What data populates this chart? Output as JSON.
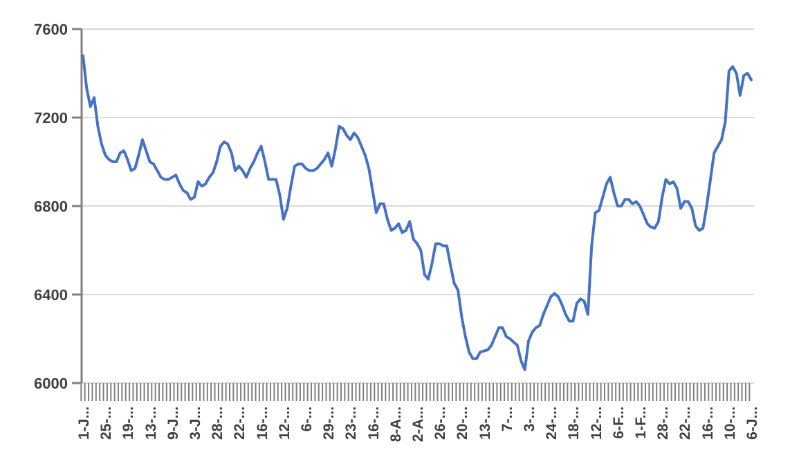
{
  "chart_data": {
    "type": "line",
    "categories": [
      "1-J...",
      null,
      null,
      null,
      null,
      null,
      "25-...",
      null,
      null,
      null,
      null,
      null,
      "19-...",
      null,
      null,
      null,
      null,
      null,
      "13-...",
      null,
      null,
      null,
      null,
      null,
      "9-J...",
      null,
      null,
      null,
      null,
      null,
      "3-J...",
      null,
      null,
      null,
      null,
      null,
      "28-...",
      null,
      null,
      null,
      null,
      null,
      "22-...",
      null,
      null,
      null,
      null,
      null,
      "16-...",
      null,
      null,
      null,
      null,
      null,
      "12-...",
      null,
      null,
      null,
      null,
      null,
      "6-...",
      null,
      null,
      null,
      null,
      null,
      "29-...",
      null,
      null,
      null,
      null,
      null,
      "23-...",
      null,
      null,
      null,
      null,
      null,
      "16-...",
      null,
      null,
      null,
      null,
      null,
      "8-A...",
      null,
      null,
      null,
      null,
      null,
      "2-A...",
      null,
      null,
      null,
      null,
      null,
      "26-...",
      null,
      null,
      null,
      null,
      null,
      "20-...",
      null,
      null,
      null,
      null,
      null,
      "13-...",
      null,
      null,
      null,
      null,
      null,
      "7-...",
      null,
      null,
      null,
      null,
      null,
      "3-...",
      null,
      null,
      null,
      null,
      null,
      "24-...",
      null,
      null,
      null,
      null,
      null,
      "18-...",
      null,
      null,
      null,
      null,
      null,
      "12-...",
      null,
      null,
      null,
      null,
      null,
      "6-F...",
      null,
      null,
      null,
      null,
      null,
      "1-F...",
      null,
      null,
      null,
      null,
      null,
      "28-...",
      null,
      null,
      null,
      null,
      null,
      "22-...",
      null,
      null,
      null,
      null,
      null,
      "16-...",
      null,
      null,
      null,
      null,
      null,
      "10-...",
      null,
      null,
      null,
      null,
      null,
      "6-J..."
    ],
    "series": [
      {
        "color": "#4472c4",
        "values": [
          7480,
          7330,
          7250,
          7290,
          7160,
          7080,
          7030,
          7010,
          7000,
          7000,
          7040,
          7050,
          7010,
          6960,
          6970,
          7030,
          7100,
          7050,
          7000,
          6990,
          6960,
          6930,
          6920,
          6920,
          6930,
          6940,
          6900,
          6870,
          6860,
          6830,
          6840,
          6910,
          6890,
          6900,
          6930,
          6950,
          7000,
          7070,
          7090,
          7080,
          7040,
          6960,
          6980,
          6960,
          6930,
          6970,
          7000,
          7040,
          7070,
          7000,
          6920,
          6920,
          6920,
          6850,
          6740,
          6790,
          6890,
          6980,
          6990,
          6990,
          6970,
          6960,
          6960,
          6970,
          6990,
          7010,
          7040,
          6980,
          7060,
          7160,
          7150,
          7120,
          7100,
          7130,
          7110,
          7070,
          7030,
          6970,
          6870,
          6770,
          6810,
          6810,
          6740,
          6690,
          6700,
          6720,
          6680,
          6690,
          6730,
          6650,
          6630,
          6600,
          6490,
          6470,
          6540,
          6630,
          6630,
          6620,
          6620,
          6530,
          6450,
          6420,
          6300,
          6210,
          6140,
          6110,
          6110,
          6140,
          6145,
          6150,
          6170,
          6210,
          6250,
          6250,
          6210,
          6200,
          6185,
          6170,
          6100,
          6060,
          6190,
          6230,
          6250,
          6260,
          6310,
          6350,
          6390,
          6405,
          6390,
          6355,
          6310,
          6280,
          6280,
          6360,
          6380,
          6370,
          6310,
          6620,
          6770,
          6780,
          6840,
          6900,
          6930,
          6860,
          6800,
          6800,
          6830,
          6830,
          6810,
          6820,
          6800,
          6760,
          6720,
          6705,
          6700,
          6730,
          6840,
          6920,
          6900,
          6910,
          6880,
          6790,
          6820,
          6820,
          6790,
          6710,
          6690,
          6700,
          6800,
          6920,
          7040,
          7070,
          7100,
          7180,
          7410,
          7430,
          7400,
          7300,
          7390,
          7400,
          7370
        ]
      }
    ],
    "ylim": [
      6000,
      7600
    ],
    "yticks": [
      6000,
      6400,
      6800,
      7200,
      7600
    ],
    "grid": "y"
  }
}
